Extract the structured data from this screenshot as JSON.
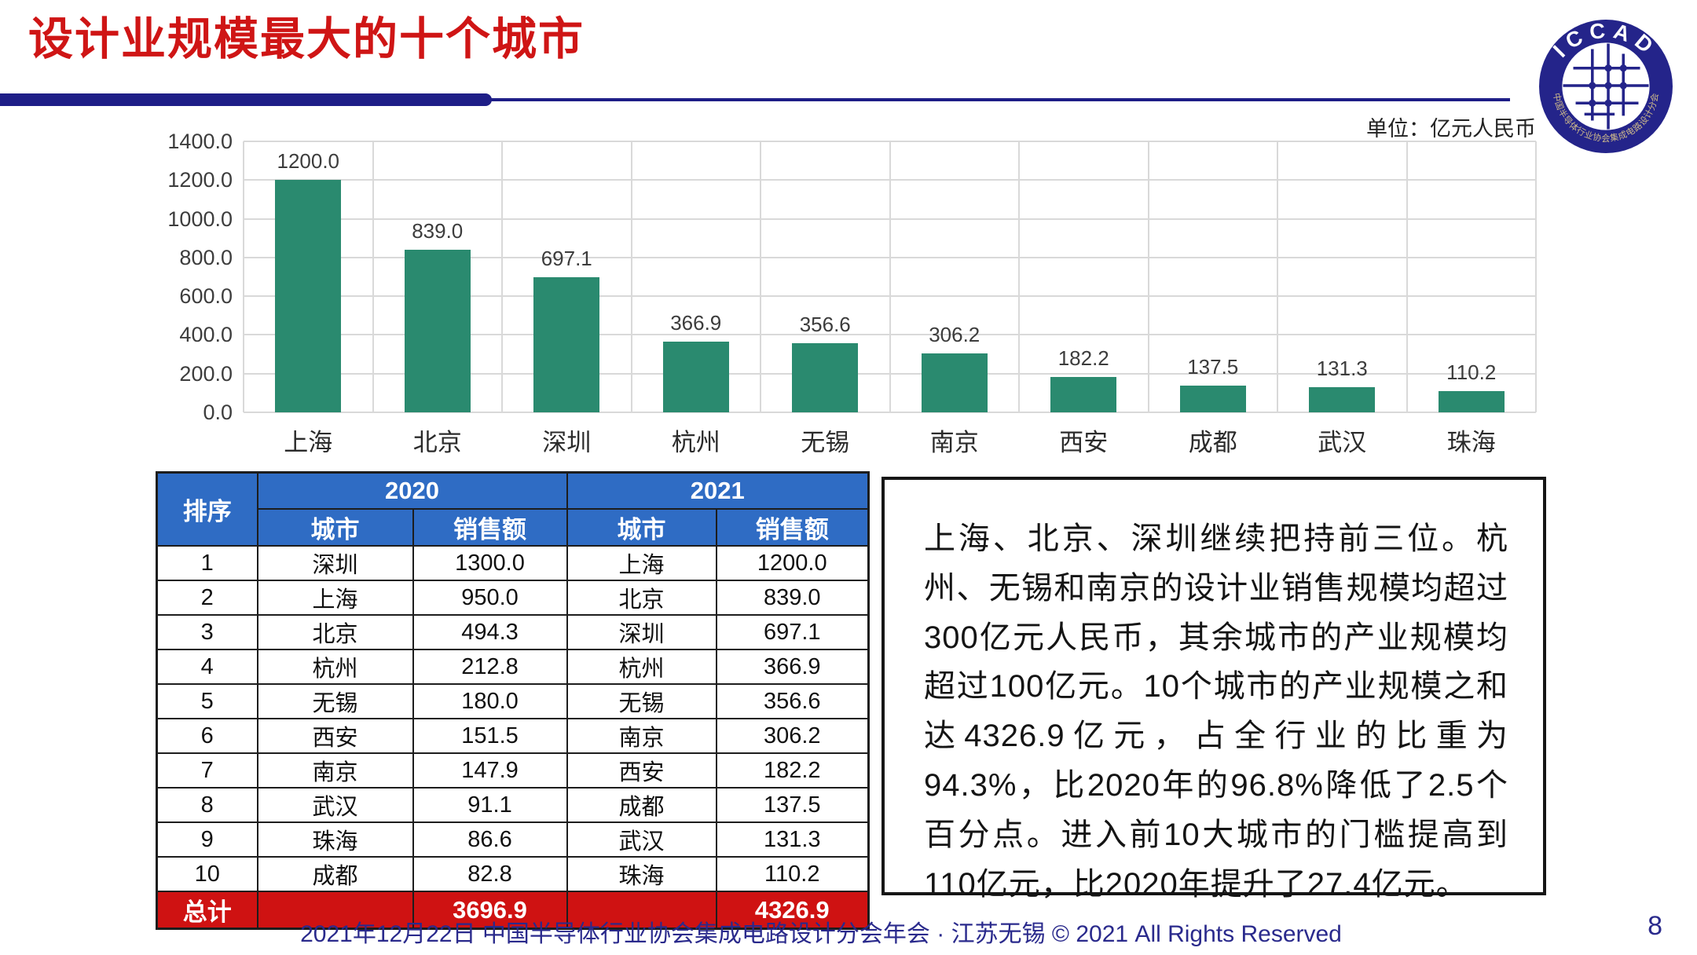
{
  "slide": {
    "title": "设计业规模最大的十个城市",
    "unit_label": "单位：亿元人民币",
    "footer": "2021年12月22日 中国半导体行业协会集成电路设计分会年会 · 江苏无锡 © 2021 All Rights Reserved",
    "page_number": "8"
  },
  "logo": {
    "arc_top_text": "ICCAD",
    "arc_bottom_text": "中国半导体行业协会集成电路设计分会"
  },
  "colors": {
    "accent_red": "#cf1515",
    "navy": "#1e1e87",
    "bar_teal": "#2a8a6f",
    "table_header_blue": "#2f6cc4",
    "total_row_red": "#cf1212",
    "gridline_gray": "#d9d9d9"
  },
  "chart_data": {
    "type": "bar",
    "title": "设计业规模最大的十个城市",
    "unit": "亿元人民币",
    "categories": [
      "上海",
      "北京",
      "深圳",
      "杭州",
      "无锡",
      "南京",
      "西安",
      "成都",
      "武汉",
      "珠海"
    ],
    "values": [
      1200.0,
      839.0,
      697.1,
      366.9,
      356.6,
      306.2,
      182.2,
      137.5,
      131.3,
      110.2
    ],
    "value_labels": [
      "1200.0",
      "839.0",
      "697.1",
      "366.9",
      "356.6",
      "306.2",
      "182.2",
      "137.5",
      "131.3",
      "110.2"
    ],
    "ylim": [
      0,
      1400
    ],
    "ytick_step": 200,
    "grid": true,
    "legend": false,
    "bar_color": "#2a8a6f"
  },
  "table": {
    "columns": {
      "rank": "排序",
      "year_2020": "2020",
      "year_2021": "2021",
      "city": "城市",
      "sales": "销售额"
    },
    "rows": [
      [
        "1",
        "深圳",
        "1300.0",
        "上海",
        "1200.0"
      ],
      [
        "2",
        "上海",
        "950.0",
        "北京",
        "839.0"
      ],
      [
        "3",
        "北京",
        "494.3",
        "深圳",
        "697.1"
      ],
      [
        "4",
        "杭州",
        "212.8",
        "杭州",
        "366.9"
      ],
      [
        "5",
        "无锡",
        "180.0",
        "无锡",
        "356.6"
      ],
      [
        "6",
        "西安",
        "151.5",
        "南京",
        "306.2"
      ],
      [
        "7",
        "南京",
        "147.9",
        "西安",
        "182.2"
      ],
      [
        "8",
        "武汉",
        "91.1",
        "成都",
        "137.5"
      ],
      [
        "9",
        "珠海",
        "86.6",
        "武汉",
        "131.3"
      ],
      [
        "10",
        "成都",
        "82.8",
        "珠海",
        "110.2"
      ]
    ],
    "total_label": "总计",
    "total_2020": "3696.9",
    "total_2021": "4326.9"
  },
  "commentary": {
    "text": "上海、北京、深圳继续把持前三位。杭州、无锡和南京的设计业销售规模均超过300亿元人民币，其余城市的产业规模均超过100亿元。10个城市的产业规模之和达4326.9亿元，占全行业的比重为94.3%，比2020年的96.8%降低了2.5个百分点。进入前10大城市的门槛提高到110亿元，比2020年提升了27.4亿元。"
  }
}
